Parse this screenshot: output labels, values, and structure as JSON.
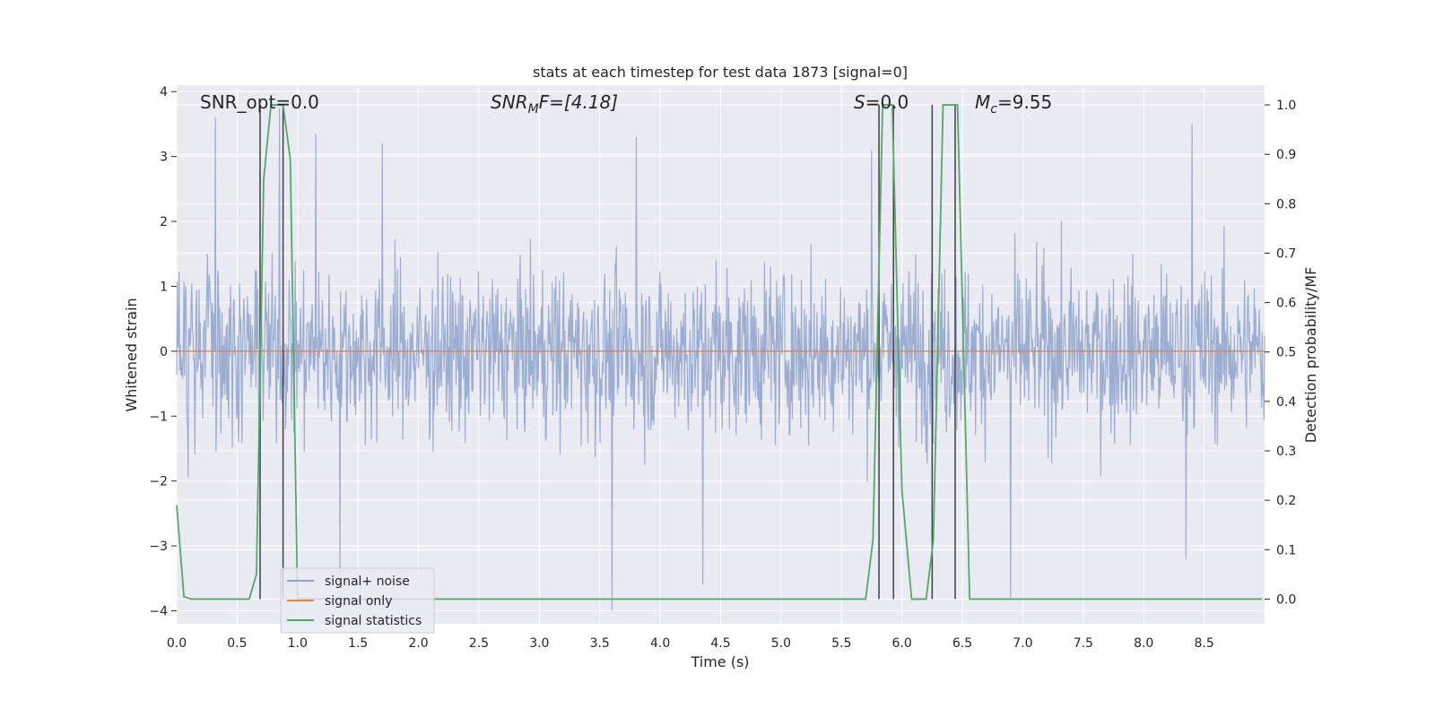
{
  "chart_data": {
    "type": "line",
    "title": "stats at each timestep for test data 1873 [signal=0]",
    "xlabel": "Time (s)",
    "ylabel": "Whitened strain",
    "y2label": "Detection probability/MF",
    "xlim": [
      0,
      9.0
    ],
    "ylim": [
      -4.2,
      4.1
    ],
    "y2lim": [
      -0.05,
      1.04
    ],
    "xticks": [
      "0.0",
      "0.5",
      "1.0",
      "1.5",
      "2.0",
      "2.5",
      "3.0",
      "3.5",
      "4.0",
      "4.5",
      "5.0",
      "5.5",
      "6.0",
      "6.5",
      "7.0",
      "7.5",
      "8.0",
      "8.5"
    ],
    "yticks": [
      "−4",
      "−3",
      "−2",
      "−1",
      "0",
      "1",
      "2",
      "3",
      "4"
    ],
    "y2ticks": [
      "0.0",
      "0.1",
      "0.2",
      "0.3",
      "0.4",
      "0.5",
      "0.6",
      "0.7",
      "0.8",
      "0.9",
      "1.0"
    ],
    "grid": true,
    "legend_position": "lower-left",
    "annotations": {
      "snr_opt": "SNR_opt=0.0",
      "snr_mf_prefix": "SNR",
      "snr_mf_sub": "M",
      "snr_mf_rest": "F=[4.18]",
      "s_label": "S",
      "s_value": "=0.0",
      "mc_label": "M",
      "mc_sub": "c",
      "mc_value": "=9.55"
    },
    "series": [
      {
        "name": "signal+ noise",
        "color": "#8ea2cc",
        "kind": "noise",
        "sample_count": 1800,
        "typical_range": [
          -2.2,
          2.2
        ],
        "peak_spikes": [
          {
            "x": 0.32,
            "y": 3.6
          },
          {
            "x": 0.85,
            "y": 3.75
          },
          {
            "x": 1.15,
            "y": 3.35
          },
          {
            "x": 1.7,
            "y": 3.2
          },
          {
            "x": 3.8,
            "y": 3.3
          },
          {
            "x": 5.75,
            "y": 3.1
          },
          {
            "x": 8.4,
            "y": 3.5
          },
          {
            "x": 1.35,
            "y": -3.6
          },
          {
            "x": 3.6,
            "y": -4.0
          },
          {
            "x": 4.35,
            "y": -3.6
          },
          {
            "x": 6.9,
            "y": -3.8
          },
          {
            "x": 8.35,
            "y": -3.2
          }
        ]
      },
      {
        "name": "signal only",
        "color": "#dd8452",
        "x": [
          0,
          9.0
        ],
        "y": [
          0,
          0
        ]
      },
      {
        "name": "signal statistics",
        "color": "#55a868",
        "axis": "right",
        "x": [
          0,
          0.06,
          0.12,
          0.6,
          0.66,
          0.72,
          0.78,
          0.88,
          0.94,
          1.0,
          5.7,
          5.76,
          5.84,
          5.92,
          6.0,
          6.08,
          6.2,
          6.26,
          6.34,
          6.46,
          6.56,
          8.98
        ],
        "y": [
          0.19,
          0.005,
          0.0,
          0.0,
          0.05,
          0.85,
          1.0,
          1.0,
          0.89,
          0.0,
          0.0,
          0.12,
          1.0,
          1.0,
          0.22,
          0.0,
          0.0,
          0.12,
          1.0,
          1.0,
          0.0,
          0.0
        ]
      }
    ],
    "vertical_markers": {
      "color": "#404040",
      "x": [
        0.69,
        0.88,
        5.81,
        5.93,
        6.25,
        6.44
      ]
    }
  }
}
